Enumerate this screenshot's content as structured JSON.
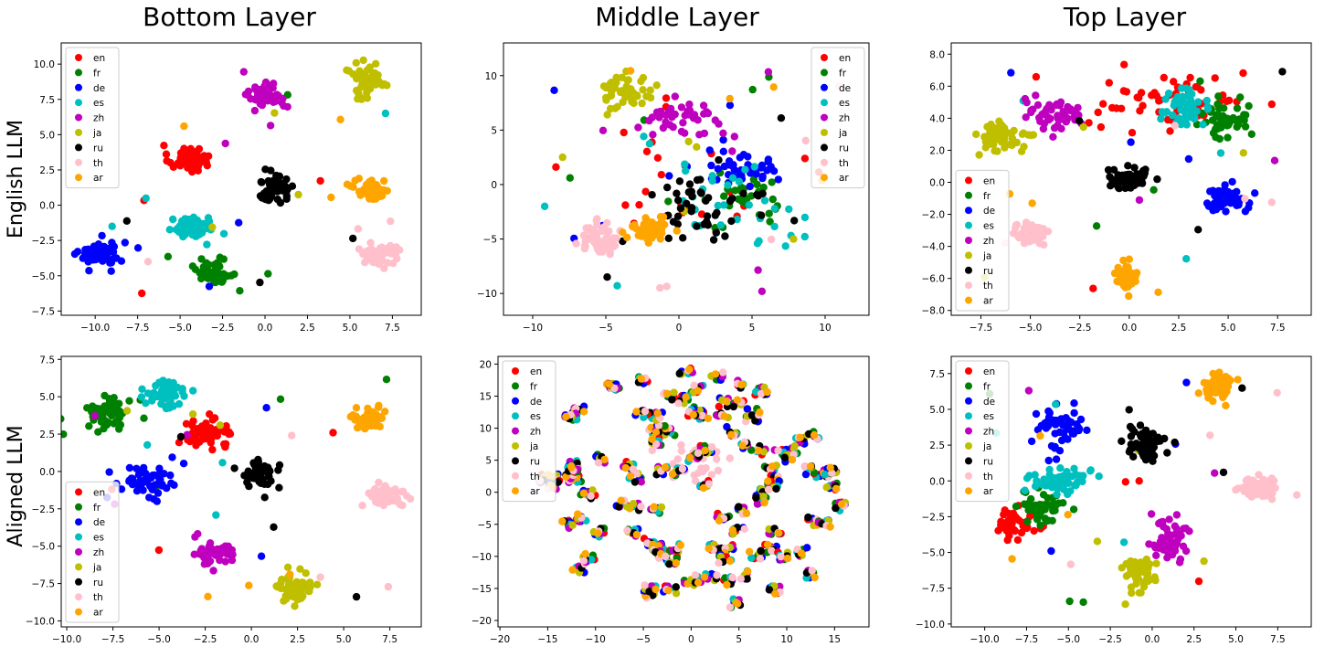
{
  "column_titles": [
    "Bottom Layer",
    "Middle Layer",
    "Top Layer"
  ],
  "row_labels": [
    "English LLM",
    "Aligned LLM"
  ],
  "legend_labels": [
    "en",
    "fr",
    "de",
    "es",
    "zh",
    "ja",
    "ru",
    "th",
    "ar"
  ],
  "colors": {
    "en": "#ff0000",
    "fr": "#008000",
    "de": "#0000ff",
    "es": "#00bfbf",
    "zh": "#bf00bf",
    "ja": "#bfbf00",
    "ru": "#000000",
    "th": "#ffc0cb",
    "ar": "#ffa500"
  },
  "chart_data": [
    {
      "type": "scatter",
      "row": "English LLM",
      "column": "Bottom Layer",
      "xlim": [
        -12,
        9.2
      ],
      "ylim": [
        -7.8,
        11.5
      ],
      "xticks": [
        -10.0,
        -7.5,
        -5.0,
        -2.5,
        0.0,
        2.5,
        5.0,
        7.5
      ],
      "yticks": [
        -7.5,
        -5.0,
        -2.5,
        0.0,
        2.5,
        5.0,
        7.5,
        10.0
      ],
      "legend_position": "upper-left",
      "legend_labels_visible": true,
      "clusters": [
        {
          "lang": "en",
          "center": [
            -4.5,
            3.3
          ],
          "spread": [
            1.0,
            0.8
          ],
          "n": 55
        },
        {
          "lang": "fr",
          "center": [
            -3.0,
            -4.8
          ],
          "spread": [
            1.0,
            0.9
          ],
          "n": 50
        },
        {
          "lang": "de",
          "center": [
            -9.6,
            -3.4
          ],
          "spread": [
            1.1,
            0.8
          ],
          "n": 55
        },
        {
          "lang": "es",
          "center": [
            -4.2,
            -1.6
          ],
          "spread": [
            1.1,
            0.7
          ],
          "n": 55
        },
        {
          "lang": "zh",
          "center": [
            0.2,
            7.8
          ],
          "spread": [
            0.9,
            0.8
          ],
          "n": 50
        },
        {
          "lang": "ja",
          "center": [
            6.0,
            8.9
          ],
          "spread": [
            1.0,
            0.9
          ],
          "n": 55
        },
        {
          "lang": "ru",
          "center": [
            0.6,
            1.2
          ],
          "spread": [
            0.9,
            0.8
          ],
          "n": 55
        },
        {
          "lang": "th",
          "center": [
            6.6,
            -3.4
          ],
          "spread": [
            1.0,
            0.7
          ],
          "n": 55
        },
        {
          "lang": "ar",
          "center": [
            6.3,
            1.1
          ],
          "spread": [
            0.9,
            0.6
          ],
          "n": 55
        }
      ],
      "outliers_per_class": 3
    },
    {
      "type": "scatter",
      "row": "English LLM",
      "column": "Middle Layer",
      "xlim": [
        -12,
        13
      ],
      "ylim": [
        -12,
        13
      ],
      "xticks": [
        -10,
        -5,
        0,
        5,
        10
      ],
      "yticks": [
        -10,
        -5,
        0,
        5,
        10
      ],
      "legend_position": "upper-right",
      "legend_labels_visible": true,
      "clusters": [
        {
          "lang": "en",
          "center": [
            0.5,
            0.0
          ],
          "spread": [
            5.0,
            4.5
          ],
          "n": 20
        },
        {
          "lang": "fr",
          "center": [
            4.5,
            -1.5
          ],
          "spread": [
            3.0,
            2.5
          ],
          "n": 30
        },
        {
          "lang": "de",
          "center": [
            4.5,
            1.5
          ],
          "spread": [
            2.0,
            1.5
          ],
          "n": 45
        },
        {
          "lang": "es",
          "center": [
            3.5,
            -1.5
          ],
          "spread": [
            4.0,
            3.5
          ],
          "n": 30
        },
        {
          "lang": "zh",
          "center": [
            0.0,
            6.0
          ],
          "spread": [
            2.5,
            1.5
          ],
          "n": 40
        },
        {
          "lang": "ja",
          "center": [
            -3.5,
            8.5
          ],
          "spread": [
            1.5,
            1.4
          ],
          "n": 45
        },
        {
          "lang": "ru",
          "center": [
            2.0,
            -2.0
          ],
          "spread": [
            3.5,
            2.5
          ],
          "n": 45
        },
        {
          "lang": "th",
          "center": [
            -5.5,
            -5.0
          ],
          "spread": [
            1.1,
            1.2
          ],
          "n": 60
        },
        {
          "lang": "ar",
          "center": [
            -2.0,
            -4.0
          ],
          "spread": [
            1.1,
            1.1
          ],
          "n": 55
        }
      ],
      "outliers_per_class": 5
    },
    {
      "type": "scatter",
      "row": "English LLM",
      "column": "Top Layer",
      "xlim": [
        -9.0,
        9.2
      ],
      "ylim": [
        -8.3,
        8.7
      ],
      "xticks": [
        -7.5,
        -5.0,
        -2.5,
        0.0,
        2.5,
        5.0,
        7.5
      ],
      "yticks": [
        -8,
        -6,
        -4,
        -2,
        0,
        2,
        4,
        6,
        8
      ],
      "legend_position": "lower-left",
      "legend_labels_visible": true,
      "clusters": [
        {
          "lang": "en",
          "center": [
            2.2,
            5.0
          ],
          "spread": [
            3.2,
            1.6
          ],
          "n": 55
        },
        {
          "lang": "fr",
          "center": [
            4.8,
            3.8
          ],
          "spread": [
            1.0,
            0.9
          ],
          "n": 50
        },
        {
          "lang": "de",
          "center": [
            4.8,
            -1.1
          ],
          "spread": [
            1.0,
            0.8
          ],
          "n": 55
        },
        {
          "lang": "es",
          "center": [
            2.9,
            4.8
          ],
          "spread": [
            0.8,
            0.9
          ],
          "n": 55
        },
        {
          "lang": "zh",
          "center": [
            -3.8,
            4.2
          ],
          "spread": [
            1.1,
            1.0
          ],
          "n": 50
        },
        {
          "lang": "ja",
          "center": [
            -6.3,
            2.9
          ],
          "spread": [
            1.0,
            0.8
          ],
          "n": 55
        },
        {
          "lang": "ru",
          "center": [
            0.0,
            0.2
          ],
          "spread": [
            0.9,
            0.6
          ],
          "n": 55
        },
        {
          "lang": "th",
          "center": [
            -5.0,
            -3.2
          ],
          "spread": [
            0.7,
            0.6
          ],
          "n": 55
        },
        {
          "lang": "ar",
          "center": [
            -0.2,
            -6.0
          ],
          "spread": [
            0.5,
            0.6
          ],
          "n": 55
        }
      ],
      "outliers_per_class": 3
    },
    {
      "type": "scatter",
      "row": "Aligned LLM",
      "column": "Bottom Layer",
      "xlim": [
        -10.3,
        9.2
      ],
      "ylim": [
        -10.4,
        7.7
      ],
      "xticks": [
        -10.0,
        -7.5,
        -5.0,
        -2.5,
        0.0,
        2.5,
        5.0,
        7.5
      ],
      "yticks": [
        -10.0,
        -7.5,
        -5.0,
        -2.5,
        0.0,
        2.5,
        5.0,
        7.5
      ],
      "legend_position": "lower-left",
      "legend_labels_visible": true,
      "clusters": [
        {
          "lang": "en",
          "center": [
            -2.4,
            2.5
          ],
          "spread": [
            1.2,
            0.9
          ],
          "n": 55
        },
        {
          "lang": "fr",
          "center": [
            -7.6,
            4.0
          ],
          "spread": [
            1.1,
            0.9
          ],
          "n": 55
        },
        {
          "lang": "de",
          "center": [
            -5.8,
            -0.7
          ],
          "spread": [
            1.3,
            0.9
          ],
          "n": 55
        },
        {
          "lang": "es",
          "center": [
            -4.5,
            5.2
          ],
          "spread": [
            0.9,
            0.8
          ],
          "n": 55
        },
        {
          "lang": "zh",
          "center": [
            -2.0,
            -5.5
          ],
          "spread": [
            1.0,
            0.7
          ],
          "n": 50
        },
        {
          "lang": "ja",
          "center": [
            2.3,
            -7.8
          ],
          "spread": [
            0.9,
            0.9
          ],
          "n": 55
        },
        {
          "lang": "ru",
          "center": [
            0.4,
            -0.2
          ],
          "spread": [
            1.0,
            0.8
          ],
          "n": 55
        },
        {
          "lang": "th",
          "center": [
            7.2,
            -1.6
          ],
          "spread": [
            1.0,
            0.7
          ],
          "n": 55
        },
        {
          "lang": "ar",
          "center": [
            6.2,
            3.6
          ],
          "spread": [
            0.8,
            0.7
          ],
          "n": 55
        }
      ],
      "outliers_per_class": 3
    },
    {
      "type": "scatter",
      "row": "Aligned LLM",
      "column": "Middle Layer",
      "xlim": [
        -20.2,
        18.6
      ],
      "ylim": [
        -21,
        21.2
      ],
      "xticks": [
        -20,
        -15,
        -10,
        -5,
        0,
        5,
        10,
        15
      ],
      "yticks": [
        -20,
        -15,
        -10,
        -5,
        0,
        5,
        10,
        15,
        20
      ],
      "legend_position": "upper-left",
      "legend_labels_visible": true,
      "layout": "many small mixed clusters, each containing one point from every language",
      "cluster_count": 100,
      "cluster_area": {
        "center": [
          0,
          0
        ],
        "radius": [
          16.5,
          19.5
        ]
      },
      "th_cloud": {
        "lang": "th",
        "center": [
          0.5,
          5.0
        ],
        "spread": [
          2.0,
          2.2
        ],
        "n": 30
      }
    },
    {
      "type": "scatter",
      "row": "Aligned LLM",
      "column": "Top Layer",
      "xlim": [
        -12.0,
        9.5
      ],
      "ylim": [
        -10.2,
        8.7
      ],
      "xticks": [
        -10.0,
        -7.5,
        -5.0,
        -2.5,
        0.0,
        2.5,
        5.0,
        7.5
      ],
      "yticks": [
        -10.0,
        -7.5,
        -5.0,
        -2.5,
        0.0,
        2.5,
        5.0,
        7.5
      ],
      "legend_position": "upper-left",
      "legend_labels_visible": true,
      "clusters": [
        {
          "lang": "en",
          "center": [
            -8.0,
            -3.0
          ],
          "spread": [
            1.3,
            0.9
          ],
          "n": 40
        },
        {
          "lang": "fr",
          "center": [
            -6.4,
            -1.8
          ],
          "spread": [
            1.1,
            0.9
          ],
          "n": 50
        },
        {
          "lang": "de",
          "center": [
            -5.5,
            3.8
          ],
          "spread": [
            1.3,
            1.2
          ],
          "n": 55
        },
        {
          "lang": "es",
          "center": [
            -5.5,
            0.0
          ],
          "spread": [
            1.6,
            0.7
          ],
          "n": 55
        },
        {
          "lang": "zh",
          "center": [
            1.2,
            -4.2
          ],
          "spread": [
            1.2,
            1.2
          ],
          "n": 55
        },
        {
          "lang": "ja",
          "center": [
            -0.8,
            -6.5
          ],
          "spread": [
            0.8,
            1.2
          ],
          "n": 50
        },
        {
          "lang": "ru",
          "center": [
            -0.3,
            2.5
          ],
          "spread": [
            1.0,
            1.0
          ],
          "n": 55
        },
        {
          "lang": "th",
          "center": [
            6.4,
            -0.5
          ],
          "spread": [
            1.0,
            0.6
          ],
          "n": 55
        },
        {
          "lang": "ar",
          "center": [
            3.9,
            6.6
          ],
          "spread": [
            0.8,
            0.8
          ],
          "n": 55
        }
      ],
      "outliers_per_class": 3
    }
  ]
}
